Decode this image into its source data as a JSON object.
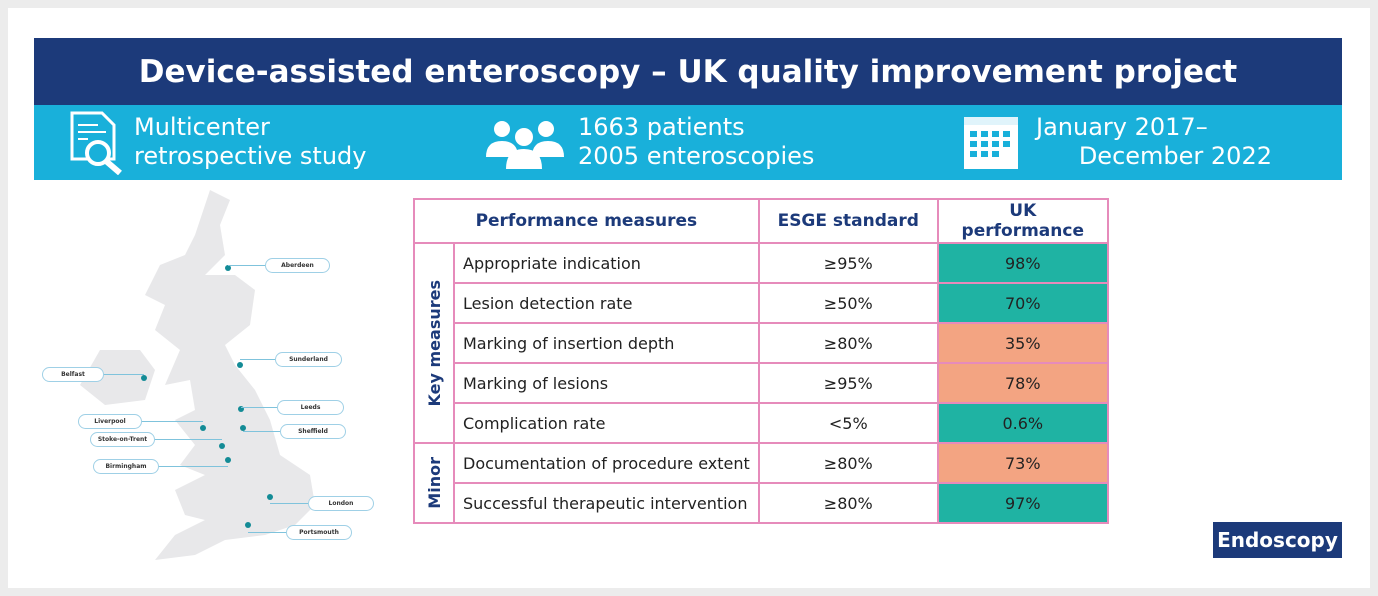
{
  "title": "Device-assisted enteroscopy – UK quality improvement project",
  "band": {
    "study_line1": "Multicenter",
    "study_line2": "retrospective study",
    "patients": "1663 patients",
    "enteroscopies": "2005 enteroscopies",
    "date_line1": "January 2017–",
    "date_line2": "December 2022"
  },
  "map": {
    "cities": [
      "Aberdeen",
      "Sunderland",
      "Belfast",
      "Leeds",
      "Sheffield",
      "Liverpool",
      "Stoke-on-Trent",
      "Birmingham",
      "London",
      "Portsmouth"
    ]
  },
  "table": {
    "headers": [
      "Performance measures",
      "ESGE standard",
      "UK performance"
    ],
    "groups": [
      "Key measures",
      "Minor"
    ],
    "rows": [
      {
        "measure": "Appropriate indication",
        "standard": "≥95%",
        "uk": "98%",
        "met": true
      },
      {
        "measure": "Lesion detection rate",
        "standard": "≥50%",
        "uk": "70%",
        "met": true
      },
      {
        "measure": "Marking of insertion depth",
        "standard": "≥80%",
        "uk": "35%",
        "met": false
      },
      {
        "measure": "Marking of lesions",
        "standard": "≥95%",
        "uk": "78%",
        "met": false
      },
      {
        "measure": "Complication rate",
        "standard": "<5%",
        "uk": "0.6%",
        "met": true
      },
      {
        "measure": "Documentation of procedure extent",
        "standard": "≥80%",
        "uk": "73%",
        "met": false
      },
      {
        "measure": "Successful therapeutic intervention",
        "standard": "≥80%",
        "uk": "97%",
        "met": true
      }
    ]
  },
  "colors": {
    "met": "#1fb3a3",
    "not_met": "#f3a482",
    "navy": "#1c3a7a",
    "band": "#19b0da"
  },
  "journal": "Endoscopy"
}
